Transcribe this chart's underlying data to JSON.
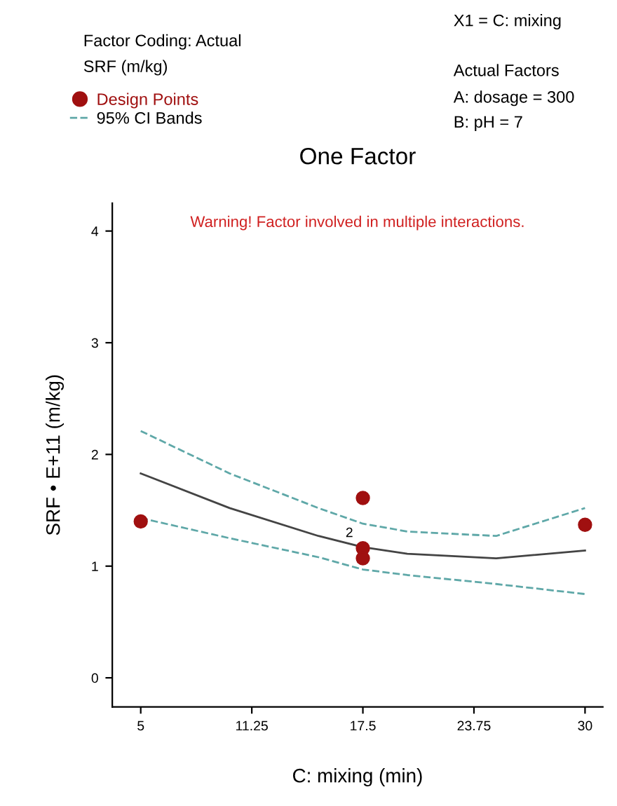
{
  "chart_data": {
    "type": "scatter",
    "title": "One Factor",
    "xlabel": "C: mixing (min)",
    "ylabel": "SRF • E+11 (m/kg)",
    "series": [
      {
        "name": "Design Points",
        "marker": "circle",
        "color": "#a01010",
        "x": [
          5,
          17.5,
          17.5,
          17.5,
          30
        ],
        "values": [
          1.4,
          1.61,
          1.16,
          1.07,
          1.37
        ]
      },
      {
        "type": "line",
        "color": "#444444",
        "x": [
          5,
          10,
          15,
          17.5,
          20,
          25,
          30
        ],
        "values": [
          1.83,
          1.52,
          1.27,
          1.17,
          1.11,
          1.07,
          1.14
        ]
      },
      {
        "name": "95% CI Bands",
        "type": "line",
        "line_style": "dashed",
        "color": "#5fa8a8",
        "x": [
          5,
          10,
          15,
          17.5,
          20,
          25,
          30
        ],
        "values": [
          2.21,
          1.83,
          1.52,
          1.38,
          1.31,
          1.27,
          1.52
        ]
      },
      {
        "type": "line",
        "line_style": "dashed",
        "color": "#5fa8a8",
        "x": [
          5,
          10,
          15,
          17.5,
          20,
          25,
          30
        ],
        "values": [
          1.43,
          1.25,
          1.08,
          0.97,
          0.92,
          0.84,
          0.75
        ]
      }
    ],
    "annotations": [
      "Factor Coding: Actual",
      "SRF (m/kg)",
      "X1 = C: mixing",
      "Actual Factors",
      "A: dosage = 300",
      "B: pH = 7",
      "Warning! Factor involved in multiple interactions.",
      {
        "text": "2",
        "x": 17.5,
        "y": 1.2
      }
    ],
    "xlim": [
      3.4,
      31
    ],
    "ylim": [
      -0.26,
      4.25
    ],
    "xticks": [
      5,
      11.25,
      17.5,
      23.75,
      30
    ],
    "yticks": [
      0,
      1,
      2,
      3,
      4
    ],
    "grid": false,
    "legend": "top left",
    "marker": "none"
  }
}
